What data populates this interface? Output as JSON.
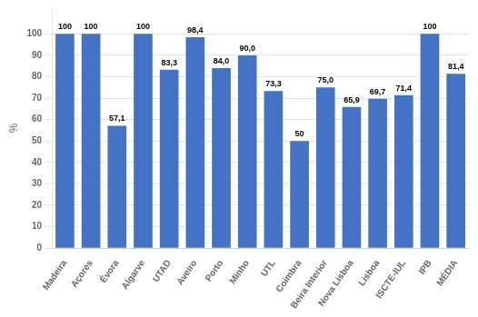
{
  "chart_data": {
    "type": "bar",
    "categories": [
      "Madeira",
      "Açores",
      "Évora",
      "Algarve",
      "UTAD",
      "Aveiro",
      "Porto",
      "Minho",
      "UTL",
      "Coimbra",
      "Beira Interior",
      "Nova Lisboa",
      "Lisboa",
      "ISCTE-IUL",
      "IPB",
      "MÉDIA"
    ],
    "values": [
      100,
      100,
      57.1,
      100,
      83.3,
      98.4,
      84.0,
      90.0,
      73.3,
      50,
      75.0,
      65.9,
      69.7,
      71.4,
      100,
      81.4
    ],
    "value_labels": [
      "100",
      "100",
      "57,1",
      "100",
      "83,3",
      "98,4",
      "84,0",
      "90,0",
      "73,3",
      "50",
      "75,0",
      "65,9",
      "69,7",
      "71,4",
      "100",
      "81,4"
    ],
    "data_labels": true,
    "color": "#4472C4",
    "ylabel": "%",
    "ylim": [
      0,
      112
    ],
    "yticks": [
      0,
      10,
      20,
      30,
      40,
      50,
      60,
      70,
      80,
      90,
      100
    ],
    "grid": true
  }
}
